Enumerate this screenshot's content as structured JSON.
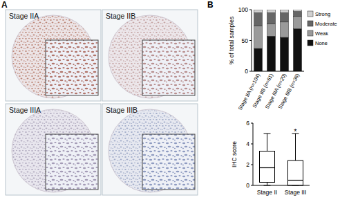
{
  "panels": [
    "A",
    "B"
  ],
  "images": [
    {
      "label": "Stage IIA"
    },
    {
      "label": "Stage IIB"
    },
    {
      "label": "Stage IIIA"
    },
    {
      "label": "Stage IIIB"
    }
  ],
  "chart_data": [
    {
      "type": "bar",
      "stacked": true,
      "legend": "right",
      "y_label": "% of total samples",
      "categories": [
        "Stage IIA (n=104)",
        "Stage IIB (n=61)",
        "Stage IIIA (n=20)",
        "Stage IIIB (n=36)"
      ],
      "series": [
        {
          "name": "None",
          "color": "#111111",
          "values": [
            37,
            57,
            55,
            69
          ]
        },
        {
          "name": "Weak",
          "color": "#9a9a9a",
          "values": [
            37,
            20,
            25,
            20
          ]
        },
        {
          "name": "Moderate",
          "color": "#666666",
          "values": [
            21,
            18,
            15,
            8
          ]
        },
        {
          "name": "Strong",
          "color": "#d0d0d0",
          "values": [
            5,
            5,
            5,
            3
          ]
        }
      ],
      "ylim": [
        0,
        100
      ],
      "yticks": [
        0,
        50,
        100
      ]
    },
    {
      "type": "box",
      "y_label": "IHC score",
      "categories": [
        "Stage II",
        "Stage III"
      ],
      "boxes": [
        {
          "min": 0,
          "q1": 0.3,
          "median": 1.7,
          "q3": 3.3,
          "max": 5
        },
        {
          "min": 0,
          "q1": 0,
          "median": 0.5,
          "q3": 2.4,
          "max": 5
        }
      ],
      "annotations": [
        {
          "text": "*",
          "category": 1,
          "y": 5.3
        }
      ],
      "ylim": [
        0,
        6
      ],
      "yticks": [
        0,
        2,
        4,
        6
      ]
    }
  ]
}
